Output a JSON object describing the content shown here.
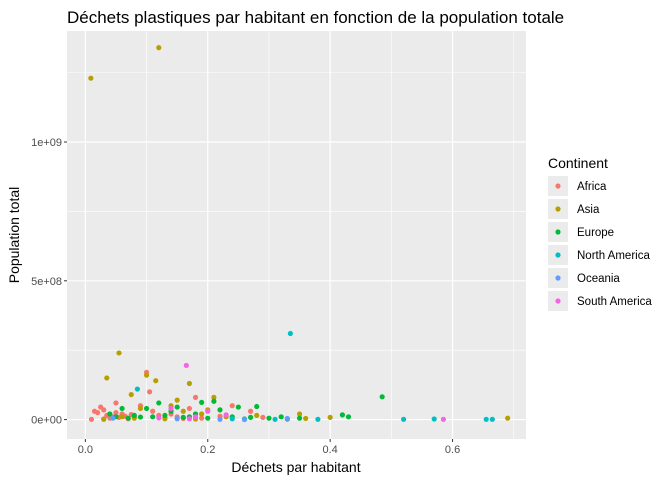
{
  "chart_data": {
    "type": "scatter",
    "title": "Déchets plastiques par habitant en fonction de la population totale",
    "xlabel": "Déchets par habitant",
    "ylabel": "Population total",
    "xlim": [
      -0.03,
      0.72
    ],
    "ylim": [
      -70000000,
      1400000000
    ],
    "x_ticks": [
      0.0,
      0.2,
      0.4,
      0.6
    ],
    "x_tick_labels": [
      "0.0",
      "0.2",
      "0.4",
      "0.6"
    ],
    "y_ticks": [
      0,
      500000000,
      1000000000
    ],
    "y_tick_labels": [
      "0e+00",
      "5e+08",
      "1e+09"
    ],
    "grid": true,
    "legend": {
      "title": "Continent",
      "placement": "right"
    },
    "series": [
      {
        "name": "Africa",
        "color": "#F8766D",
        "points": [
          [
            0.015,
            30000000
          ],
          [
            0.02,
            25000000
          ],
          [
            0.025,
            45000000
          ],
          [
            0.03,
            35000000
          ],
          [
            0.035,
            15000000
          ],
          [
            0.04,
            5000000
          ],
          [
            0.045,
            10000000
          ],
          [
            0.05,
            25000000
          ],
          [
            0.05,
            60000000
          ],
          [
            0.055,
            8000000
          ],
          [
            0.06,
            20000000
          ],
          [
            0.065,
            12000000
          ],
          [
            0.07,
            3000000
          ],
          [
            0.075,
            18000000
          ],
          [
            0.08,
            9000000
          ],
          [
            0.09,
            50000000
          ],
          [
            0.1,
            170000000
          ],
          [
            0.105,
            100000000
          ],
          [
            0.11,
            30000000
          ],
          [
            0.12,
            15000000
          ],
          [
            0.13,
            6000000
          ],
          [
            0.14,
            20000000
          ],
          [
            0.15,
            10000000
          ],
          [
            0.16,
            4000000
          ],
          [
            0.17,
            40000000
          ],
          [
            0.18,
            80000000
          ],
          [
            0.19,
            5000000
          ],
          [
            0.22,
            12000000
          ],
          [
            0.24,
            50000000
          ],
          [
            0.27,
            30000000
          ],
          [
            0.29,
            8000000
          ],
          [
            0.03,
            2000000
          ],
          [
            0.01,
            1000000
          ]
        ]
      },
      {
        "name": "Asia",
        "color": "#B79F00",
        "points": [
          [
            0.009,
            1230000000
          ],
          [
            0.12,
            1340000000
          ],
          [
            0.055,
            240000000
          ],
          [
            0.035,
            150000000
          ],
          [
            0.1,
            160000000
          ],
          [
            0.115,
            140000000
          ],
          [
            0.17,
            130000000
          ],
          [
            0.075,
            90000000
          ],
          [
            0.09,
            40000000
          ],
          [
            0.14,
            50000000
          ],
          [
            0.15,
            70000000
          ],
          [
            0.16,
            30000000
          ],
          [
            0.19,
            20000000
          ],
          [
            0.2,
            35000000
          ],
          [
            0.21,
            80000000
          ],
          [
            0.23,
            10000000
          ],
          [
            0.28,
            15000000
          ],
          [
            0.35,
            20000000
          ],
          [
            0.36,
            4000000
          ],
          [
            0.4,
            8000000
          ],
          [
            0.69,
            5000000
          ],
          [
            0.06,
            10000000
          ],
          [
            0.08,
            5000000
          ],
          [
            0.13,
            3000000
          ],
          [
            0.18,
            2000000
          ],
          [
            0.03,
            1000000
          ]
        ]
      },
      {
        "name": "Europe",
        "color": "#00BA38",
        "points": [
          [
            0.04,
            20000000
          ],
          [
            0.05,
            10000000
          ],
          [
            0.06,
            40000000
          ],
          [
            0.07,
            5000000
          ],
          [
            0.08,
            15000000
          ],
          [
            0.09,
            9000000
          ],
          [
            0.1,
            40000000
          ],
          [
            0.11,
            10000000
          ],
          [
            0.12,
            60000000
          ],
          [
            0.13,
            15000000
          ],
          [
            0.14,
            30000000
          ],
          [
            0.15,
            45000000
          ],
          [
            0.16,
            8000000
          ],
          [
            0.17,
            10000000
          ],
          [
            0.18,
            20000000
          ],
          [
            0.19,
            62000000
          ],
          [
            0.2,
            5000000
          ],
          [
            0.21,
            66000000
          ],
          [
            0.22,
            35000000
          ],
          [
            0.24,
            10000000
          ],
          [
            0.25,
            45000000
          ],
          [
            0.26,
            2000000
          ],
          [
            0.27,
            8000000
          ],
          [
            0.28,
            47000000
          ],
          [
            0.3,
            5000000
          ],
          [
            0.32,
            10000000
          ],
          [
            0.33,
            2000000
          ],
          [
            0.35,
            5000000
          ],
          [
            0.42,
            17000000
          ],
          [
            0.43,
            10000000
          ],
          [
            0.485,
            82000000
          ]
        ]
      },
      {
        "name": "North America",
        "color": "#00BFC4",
        "points": [
          [
            0.085,
            110000000
          ],
          [
            0.335,
            310000000
          ],
          [
            0.38,
            1000000
          ],
          [
            0.52,
            1000000
          ],
          [
            0.57,
            2000000
          ],
          [
            0.655,
            1000000
          ],
          [
            0.665,
            1000000
          ],
          [
            0.24,
            3000000
          ],
          [
            0.31,
            1000000
          ]
        ]
      },
      {
        "name": "Oceania",
        "color": "#619CFF",
        "points": [
          [
            0.045,
            5000000
          ],
          [
            0.15,
            3000000
          ],
          [
            0.22,
            1000000
          ],
          [
            0.33,
            4000000
          ],
          [
            0.26,
            200000
          ]
        ]
      },
      {
        "name": "South America",
        "color": "#F564E3",
        "points": [
          [
            0.14,
            40000000
          ],
          [
            0.165,
            195000000
          ],
          [
            0.18,
            10000000
          ],
          [
            0.2,
            30000000
          ],
          [
            0.23,
            17000000
          ],
          [
            0.12,
            6000000
          ],
          [
            0.17,
            3000000
          ],
          [
            0.585,
            1000000
          ]
        ]
      }
    ]
  }
}
